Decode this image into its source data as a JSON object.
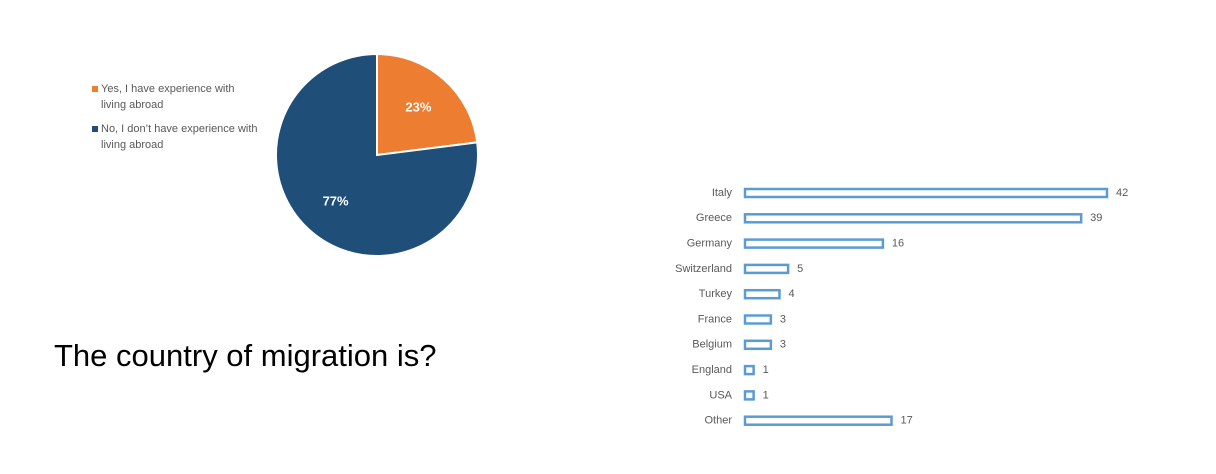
{
  "heading": "The country of migration is?",
  "chart_data": [
    {
      "type": "pie",
      "categories": [
        "Yes, I have experience with living abroad",
        "No, I don’t have experience with living abroad"
      ],
      "values": [
        23,
        77
      ],
      "value_labels": [
        "23%",
        "77%"
      ],
      "colors": [
        "#ed7d31",
        "#1f4e79"
      ],
      "legend": "left"
    },
    {
      "type": "hbar",
      "categories": [
        "Italy",
        "Greece",
        "Germany",
        "Switzerland",
        "Turkey",
        "France",
        "Belgium",
        "England",
        "USA",
        "Other"
      ],
      "values": [
        42,
        39,
        16,
        5,
        4,
        3,
        3,
        1,
        1,
        17
      ],
      "color": "#5b9bd5"
    }
  ]
}
